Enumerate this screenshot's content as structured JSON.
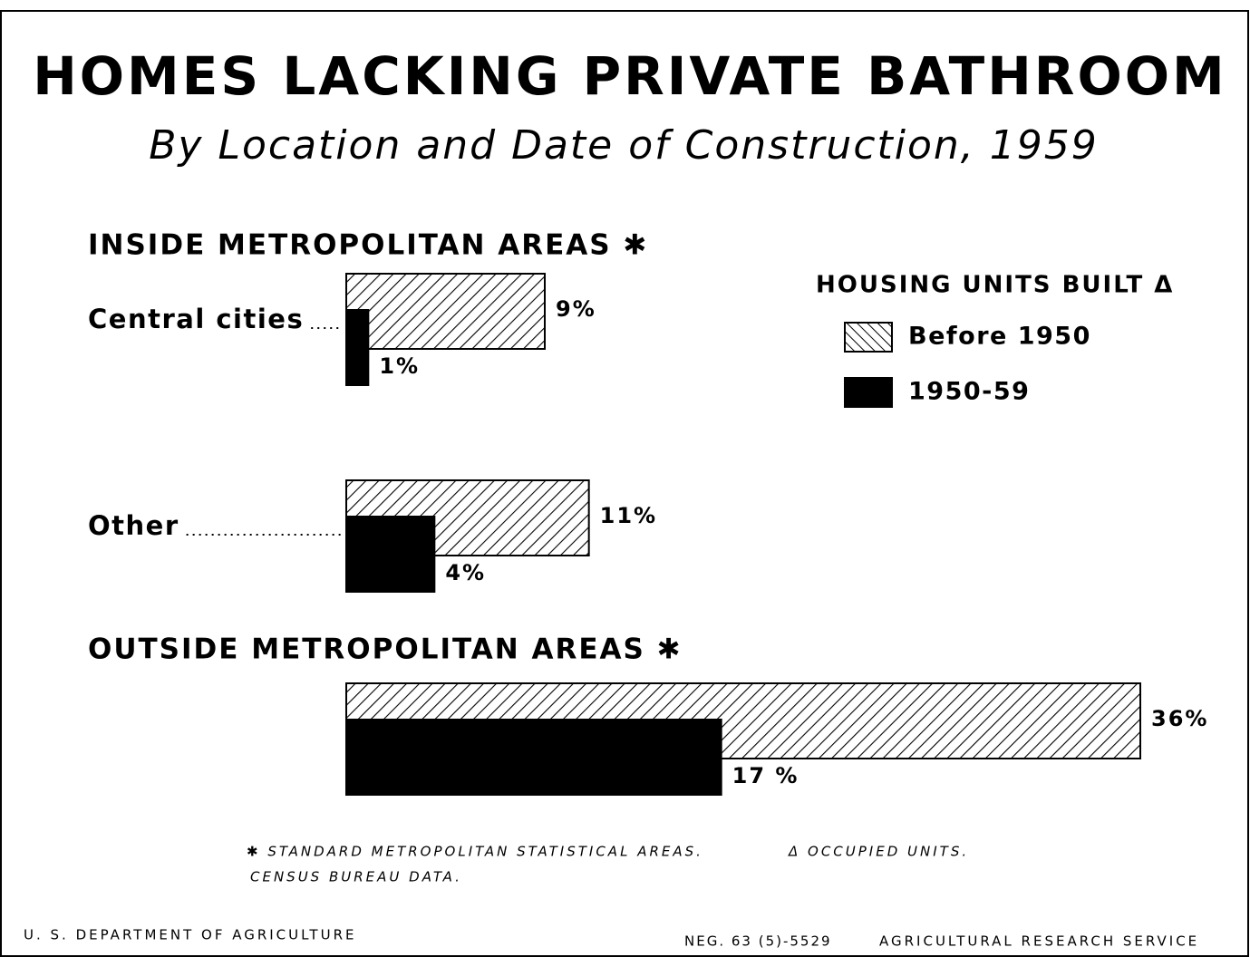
{
  "chart_data": {
    "type": "bar",
    "orientation": "horizontal",
    "title": "HOMES LACKING PRIVATE BATHROOM",
    "subtitle": "By Location and Date of Construction, 1959",
    "groups": [
      "INSIDE METROPOLITAN AREAS ✱",
      "OUTSIDE METROPOLITAN AREAS ✱"
    ],
    "categories": [
      "Central cities",
      "Other",
      null
    ],
    "legend_title": "HOUSING UNITS BUILT Δ",
    "series": [
      {
        "name": "Before 1950",
        "color": "#000000",
        "pattern": "hatch",
        "values": [
          9,
          11,
          36
        ],
        "value_labels": [
          "9%",
          "11%",
          "36%"
        ]
      },
      {
        "name": "1950-59",
        "color": "#000000",
        "pattern": "solid",
        "values": [
          1,
          4,
          17
        ],
        "value_labels": [
          "1%",
          "4%",
          "17 %"
        ]
      }
    ],
    "footnotes": [
      "✱ STANDARD METROPOLITAN STATISTICAL AREAS.",
      "CENSUS BUREAU DATA.",
      "Δ OCCUPIED UNITS."
    ],
    "footer": [
      "U. S. DEPARTMENT OF AGRICULTURE",
      "NEG. 63 (5)-5529",
      "AGRICULTURAL RESEARCH SERVICE"
    ]
  }
}
